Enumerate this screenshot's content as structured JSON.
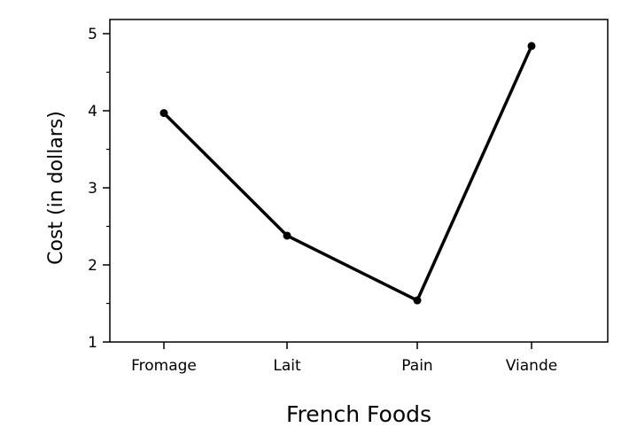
{
  "chart_data": {
    "type": "line",
    "title": "",
    "xlabel": "French Foods",
    "ylabel": "Cost (in dollars)",
    "categories": [
      "Fromage",
      "Lait",
      "Pain",
      "Viande"
    ],
    "series": [
      {
        "values": [
          3.97,
          2.38,
          1.54,
          4.84
        ]
      }
    ],
    "ylim": [
      1,
      5
    ],
    "yticks": [
      "1",
      "2",
      "3",
      "4",
      "5"
    ],
    "grid": false,
    "legend": "none",
    "colors": {
      "line": "#000000",
      "axis": "#000000"
    }
  }
}
